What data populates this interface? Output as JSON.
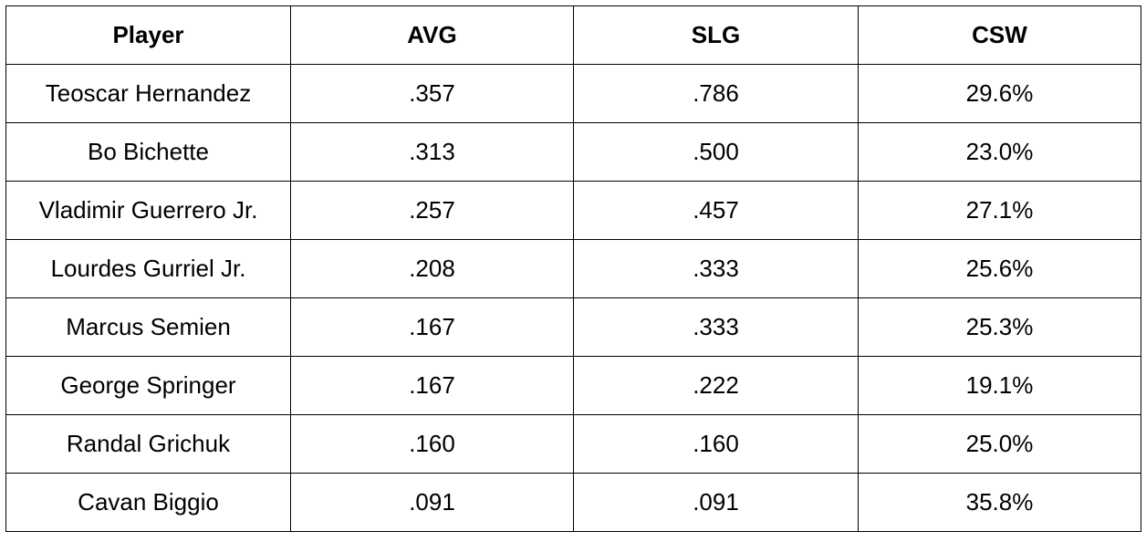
{
  "table": {
    "header": [
      "Player",
      "AVG",
      "SLG",
      "CSW"
    ],
    "rows": [
      [
        "Teoscar Hernandez",
        ".357",
        ".786",
        "29.6%"
      ],
      [
        "Bo Bichette",
        ".313",
        ".500",
        "23.0%"
      ],
      [
        "Vladimir Guerrero Jr.",
        ".257",
        ".457",
        "27.1%"
      ],
      [
        "Lourdes Gurriel Jr.",
        ".208",
        ".333",
        "25.6%"
      ],
      [
        "Marcus Semien",
        ".167",
        ".333",
        "25.3%"
      ],
      [
        "George Springer",
        ".167",
        ".222",
        "19.1%"
      ],
      [
        "Randal Grichuk",
        ".160",
        ".160",
        "25.0%"
      ],
      [
        "Cavan Biggio",
        ".091",
        ".091",
        "35.8%"
      ]
    ]
  }
}
